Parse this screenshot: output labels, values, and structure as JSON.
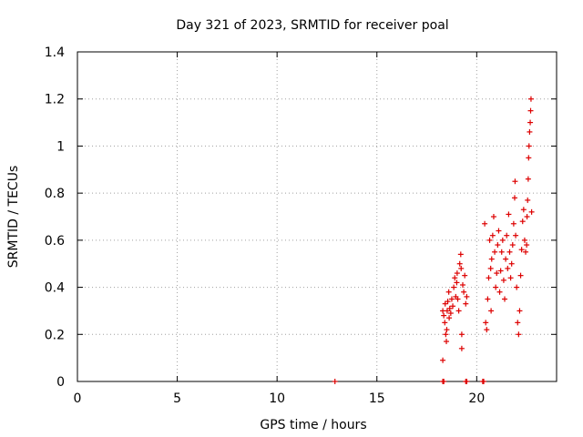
{
  "chart_data": {
    "type": "scatter",
    "title": "Day 321 of 2023, SRMTID for receiver poal",
    "xlabel": "GPS time / hours",
    "ylabel": "SRMTID / TECUs",
    "xlim": [
      0,
      24
    ],
    "ylim": [
      0,
      1.4
    ],
    "xticks": [
      0,
      5,
      10,
      15,
      20
    ],
    "yticks": [
      0,
      0.2,
      0.4,
      0.6,
      0.8,
      1,
      1.2,
      1.4
    ],
    "ytick_labels": [
      "0",
      "0.2",
      "0.4",
      "0.6",
      "0.8",
      "1",
      "1.2",
      "1.4"
    ],
    "grid": true,
    "marker": "+",
    "series": [
      {
        "name": "SRMTID",
        "color": "#dd0000",
        "points": [
          [
            12.9,
            0.0
          ],
          [
            18.3,
            0.0
          ],
          [
            18.35,
            0.0
          ],
          [
            19.45,
            0.0
          ],
          [
            19.5,
            0.0
          ],
          [
            20.3,
            0.0
          ],
          [
            20.35,
            0.0
          ],
          [
            18.3,
            0.09
          ],
          [
            18.3,
            0.3
          ],
          [
            18.35,
            0.28
          ],
          [
            18.4,
            0.25
          ],
          [
            18.42,
            0.33
          ],
          [
            18.45,
            0.2
          ],
          [
            18.48,
            0.17
          ],
          [
            18.5,
            0.22
          ],
          [
            18.52,
            0.3
          ],
          [
            18.55,
            0.34
          ],
          [
            18.6,
            0.38
          ],
          [
            18.62,
            0.27
          ],
          [
            18.65,
            0.31
          ],
          [
            18.7,
            0.29
          ],
          [
            18.75,
            0.35
          ],
          [
            18.8,
            0.32
          ],
          [
            18.85,
            0.4
          ],
          [
            18.9,
            0.44
          ],
          [
            18.95,
            0.36
          ],
          [
            19.0,
            0.42
          ],
          [
            19.02,
            0.46
          ],
          [
            19.05,
            0.35
          ],
          [
            19.1,
            0.3
          ],
          [
            19.15,
            0.5
          ],
          [
            19.2,
            0.54
          ],
          [
            19.22,
            0.48
          ],
          [
            19.25,
            0.2
          ],
          [
            19.25,
            0.14
          ],
          [
            19.3,
            0.41
          ],
          [
            19.35,
            0.38
          ],
          [
            19.4,
            0.45
          ],
          [
            19.45,
            0.33
          ],
          [
            19.5,
            0.36
          ],
          [
            20.4,
            0.67
          ],
          [
            20.45,
            0.25
          ],
          [
            20.5,
            0.22
          ],
          [
            20.55,
            0.35
          ],
          [
            20.6,
            0.44
          ],
          [
            20.65,
            0.6
          ],
          [
            20.7,
            0.48
          ],
          [
            20.72,
            0.3
          ],
          [
            20.75,
            0.52
          ],
          [
            20.8,
            0.62
          ],
          [
            20.85,
            0.7
          ],
          [
            20.9,
            0.55
          ],
          [
            20.95,
            0.4
          ],
          [
            21.0,
            0.46
          ],
          [
            21.05,
            0.58
          ],
          [
            21.1,
            0.64
          ],
          [
            21.15,
            0.38
          ],
          [
            21.2,
            0.47
          ],
          [
            21.25,
            0.55
          ],
          [
            21.3,
            0.6
          ],
          [
            21.35,
            0.43
          ],
          [
            21.4,
            0.35
          ],
          [
            21.45,
            0.52
          ],
          [
            21.5,
            0.62
          ],
          [
            21.55,
            0.48
          ],
          [
            21.6,
            0.71
          ],
          [
            21.65,
            0.55
          ],
          [
            21.7,
            0.44
          ],
          [
            21.75,
            0.5
          ],
          [
            21.8,
            0.58
          ],
          [
            21.85,
            0.67
          ],
          [
            21.9,
            0.78
          ],
          [
            21.92,
            0.85
          ],
          [
            21.95,
            0.62
          ],
          [
            22.0,
            0.4
          ],
          [
            22.05,
            0.25
          ],
          [
            22.1,
            0.2
          ],
          [
            22.15,
            0.3
          ],
          [
            22.2,
            0.45
          ],
          [
            22.25,
            0.56
          ],
          [
            22.3,
            0.68
          ],
          [
            22.35,
            0.73
          ],
          [
            22.4,
            0.6
          ],
          [
            22.45,
            0.55
          ],
          [
            22.5,
            0.58
          ],
          [
            22.52,
            0.7
          ],
          [
            22.55,
            0.77
          ],
          [
            22.58,
            0.86
          ],
          [
            22.6,
            0.95
          ],
          [
            22.62,
            1.0
          ],
          [
            22.65,
            1.06
          ],
          [
            22.68,
            1.1
          ],
          [
            22.7,
            1.15
          ],
          [
            22.72,
            1.2
          ],
          [
            22.75,
            0.72
          ]
        ]
      }
    ]
  }
}
